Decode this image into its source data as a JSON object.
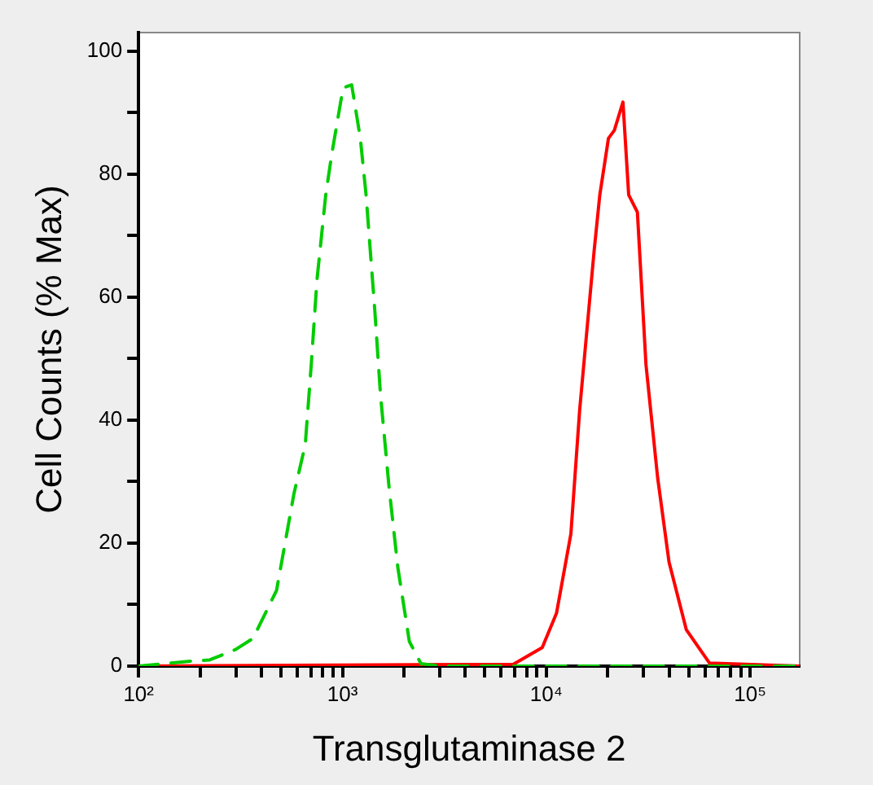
{
  "chart_data": {
    "type": "line",
    "xlabel": "Transglutaminase 2",
    "ylabel": "Cell Counts (% Max)",
    "log": "x",
    "grid": false,
    "legend": false,
    "marker": "none",
    "xlim": [
      100,
      175000
    ],
    "ylim": [
      0,
      103
    ],
    "xticks": [
      {
        "value": 100,
        "label": "10²"
      },
      {
        "value": 200,
        "label": null
      },
      {
        "value": 300,
        "label": null
      },
      {
        "value": 400,
        "label": null
      },
      {
        "value": 500,
        "label": null
      },
      {
        "value": 600,
        "label": null
      },
      {
        "value": 700,
        "label": null
      },
      {
        "value": 800,
        "label": null
      },
      {
        "value": 900,
        "label": null
      },
      {
        "value": 1000,
        "label": "10³"
      },
      {
        "value": 2000,
        "label": null
      },
      {
        "value": 3000,
        "label": null
      },
      {
        "value": 4000,
        "label": null
      },
      {
        "value": 5000,
        "label": null
      },
      {
        "value": 6000,
        "label": null
      },
      {
        "value": 7000,
        "label": null
      },
      {
        "value": 8000,
        "label": null
      },
      {
        "value": 9000,
        "label": null
      },
      {
        "value": 10000,
        "label": "10⁴"
      },
      {
        "value": 20000,
        "label": null
      },
      {
        "value": 30000,
        "label": null
      },
      {
        "value": 40000,
        "label": null
      },
      {
        "value": 50000,
        "label": null
      },
      {
        "value": 60000,
        "label": null
      },
      {
        "value": 70000,
        "label": null
      },
      {
        "value": 80000,
        "label": null
      },
      {
        "value": 90000,
        "label": null
      },
      {
        "value": 100000,
        "label": "10⁵"
      }
    ],
    "yticks": [
      0,
      {
        "value": 10,
        "label": null
      },
      20,
      {
        "value": 30,
        "label": null
      },
      40,
      {
        "value": 50,
        "label": null
      },
      60,
      {
        "value": 70,
        "label": null
      },
      80,
      {
        "value": 90,
        "label": null
      },
      100
    ],
    "series": [
      {
        "color": "#00cc00",
        "line_style": "dashed",
        "x": [
          100,
          179,
          223,
          299,
          364,
          475,
          578,
          657,
          703,
          750,
          828,
          884,
          1007,
          1110,
          1224,
          1306,
          1440,
          1538,
          1694,
          1870,
          2129,
          2427,
          3000,
          175000
        ],
        "values": [
          0,
          0.8,
          1,
          2.7,
          4.5,
          12.3,
          28,
          36,
          49,
          62.8,
          76.6,
          83,
          94,
          94.5,
          85.8,
          76.6,
          58,
          44,
          29,
          16,
          4,
          0.4,
          0,
          0
        ]
      },
      {
        "color": "#ff0000",
        "line_style": "solid",
        "x": [
          100,
          6890,
          9550,
          11220,
          13200,
          14580,
          17150,
          18300,
          20180,
          21560,
          23770,
          25360,
          27980,
          30830,
          35150,
          40000,
          48640,
          63100,
          175000
        ],
        "values": [
          0,
          0.3,
          3,
          8.6,
          21.5,
          41.7,
          67.4,
          76.6,
          85.8,
          87.1,
          91.7,
          76.6,
          73.8,
          49,
          30.7,
          16.9,
          5.9,
          0.5,
          0
        ]
      }
    ]
  }
}
